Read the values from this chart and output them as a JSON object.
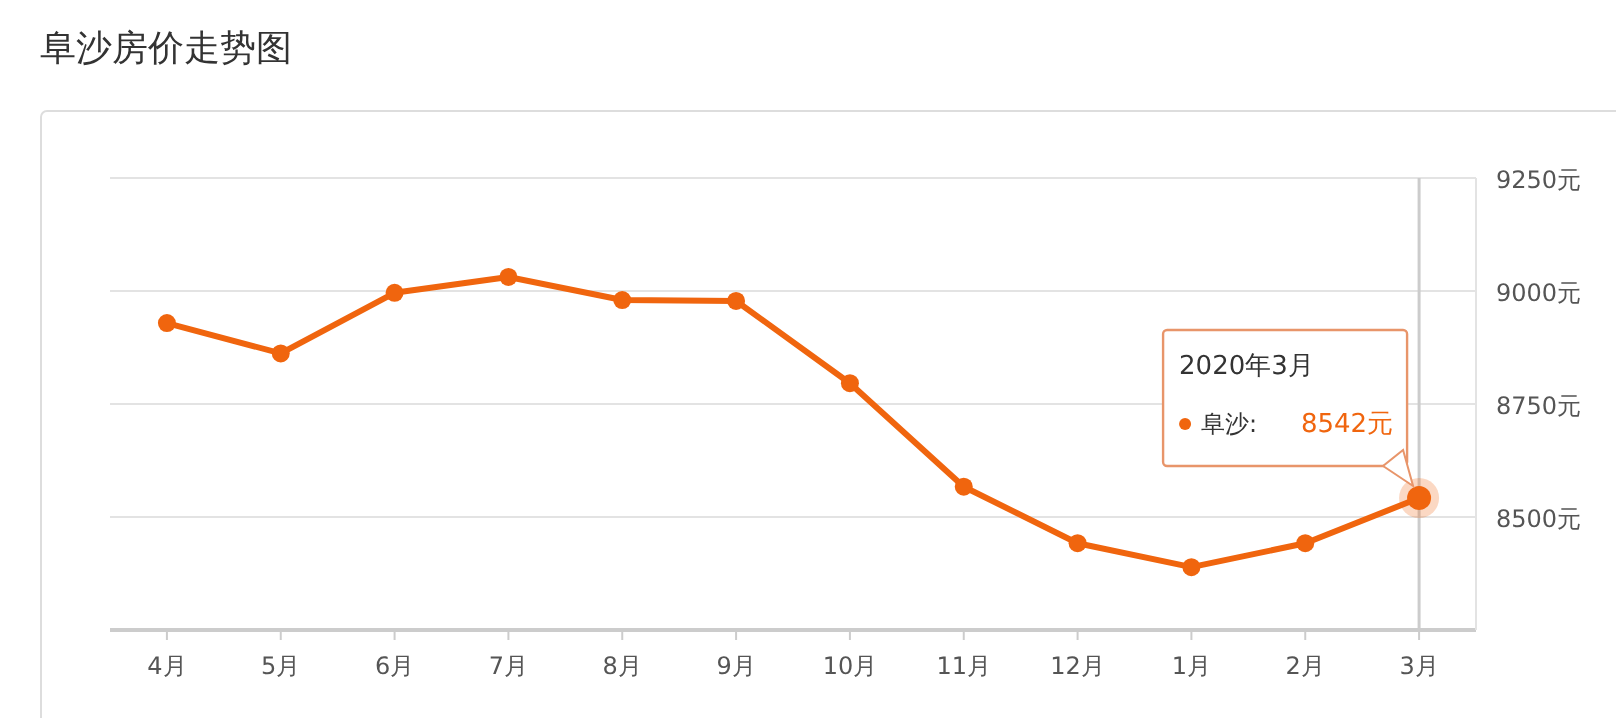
{
  "chart_data": {
    "type": "line",
    "title": "阜沙房价走势图",
    "categories": [
      "4月",
      "5月",
      "6月",
      "7月",
      "8月",
      "9月",
      "10月",
      "11月",
      "12月",
      "1月",
      "2月",
      "3月"
    ],
    "series": [
      {
        "name": "阜沙:",
        "color": "#f0650e",
        "values": [
          8929,
          8862,
          8996,
          9031,
          8980,
          8978,
          8796,
          8567,
          8442,
          8389,
          8442,
          8542
        ],
        "value_labels": [
          null,
          null,
          null,
          null,
          null,
          null,
          null,
          null,
          null,
          null,
          null,
          "8542元"
        ]
      }
    ],
    "ylim": [
      8250,
      9250
    ],
    "yticks": [
      {
        "value": 8250,
        "label": null
      },
      {
        "value": 8500,
        "label": "8500元"
      },
      {
        "value": 8750,
        "label": "8750元"
      },
      {
        "value": 9000,
        "label": "9000元"
      },
      {
        "value": 9250,
        "label": "9250元"
      }
    ],
    "grid": "y",
    "marker": "circle",
    "line_style": "solid",
    "ref_lines": [
      {
        "axis": "x",
        "value": "3月",
        "color": "#cccccc"
      }
    ],
    "annotations": [
      "2020年3月"
    ]
  }
}
